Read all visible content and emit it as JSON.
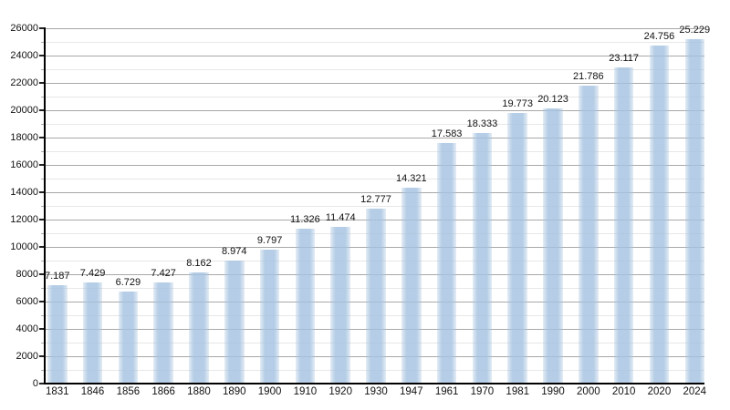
{
  "chart_data": {
    "type": "bar",
    "title": "",
    "xlabel": "",
    "ylabel": "",
    "categories": [
      "1831",
      "1846",
      "1856",
      "1866",
      "1880",
      "1890",
      "1900",
      "1910",
      "1920",
      "1930",
      "1947",
      "1961",
      "1970",
      "1981",
      "1990",
      "2000",
      "2010",
      "2020",
      "2024"
    ],
    "values": [
      7187,
      7429,
      6729,
      7427,
      8162,
      8974,
      9797,
      11326,
      11474,
      12777,
      14321,
      17583,
      18333,
      19773,
      20123,
      21786,
      23117,
      24756,
      25229
    ],
    "value_labels": [
      "7.187",
      "7.429",
      "6.729",
      "7.427",
      "8.162",
      "8.974",
      "9.797",
      "11.326",
      "11.474",
      "12.777",
      "14.321",
      "17.583",
      "18.333",
      "19.773",
      "20.123",
      "21.786",
      "23.117",
      "24.756",
      "25.229"
    ],
    "y_tick_labels": [
      "0",
      "2000",
      "4000",
      "6000",
      "8000",
      "10000",
      "12000",
      "14000",
      "16000",
      "18000",
      "20000",
      "22000",
      "24000",
      "26000"
    ],
    "ylim": [
      0,
      26000
    ],
    "y_major_step": 2000,
    "y_minor_step": 1000,
    "grid": true,
    "legend": false,
    "colors": {
      "background": "#ffffff",
      "bar_fill": "#a5c2e0",
      "major_gridline": "#a8a8a8",
      "minor_gridline": "#e7e7e7",
      "axis": "#000000",
      "text": "#111111"
    }
  }
}
